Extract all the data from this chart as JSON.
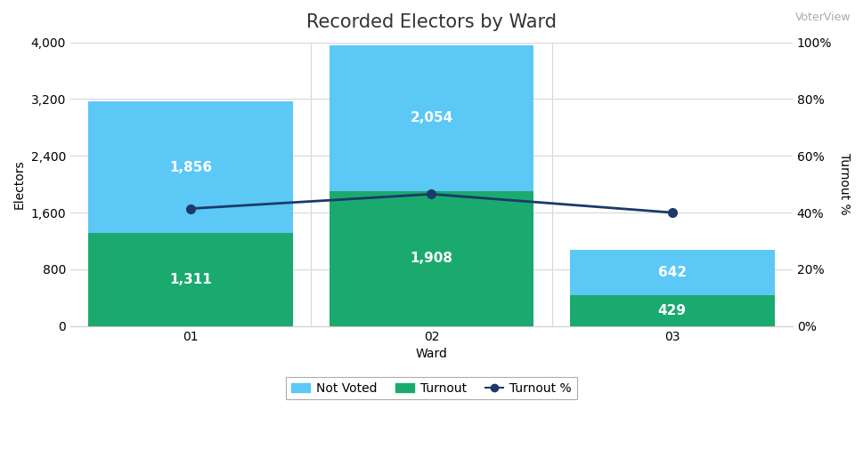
{
  "title": "Recorded Electors by Ward",
  "watermark": "VoterView",
  "xlabel": "Ward",
  "ylabel_left": "Electors",
  "ylabel_right": "Turnout %",
  "wards": [
    "01",
    "02",
    "03"
  ],
  "turnout": [
    1311,
    1908,
    429
  ],
  "not_voted": [
    1856,
    2054,
    642
  ],
  "turnout_pct": [
    41.4,
    46.5,
    40.0
  ],
  "color_turnout": "#1aaa6e",
  "color_not_voted": "#5bc8f5",
  "color_line": "#1a3a6b",
  "ylim_left": [
    0,
    4000
  ],
  "ylim_right": [
    0,
    100
  ],
  "yticks_left": [
    0,
    800,
    1600,
    2400,
    3200,
    4000
  ],
  "yticks_right": [
    0,
    20,
    40,
    60,
    80,
    100
  ],
  "background_color": "#ffffff",
  "plot_bg_color": "#ffffff",
  "grid_color": "#d8d8d8",
  "title_fontsize": 15,
  "label_fontsize": 10,
  "tick_fontsize": 10,
  "bar_width": 0.85,
  "annotation_fontsize": 11,
  "annotation_color": "#ffffff"
}
